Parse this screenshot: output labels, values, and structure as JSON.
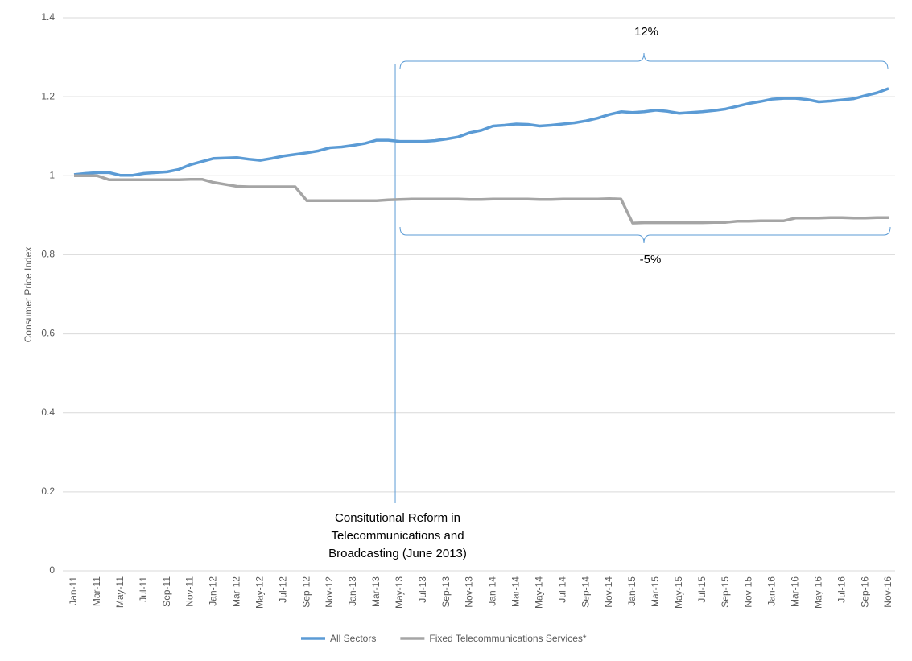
{
  "chart_data": {
    "type": "line",
    "y_label": "Consumer Price Index",
    "categories": [
      "Jan-11",
      null,
      "Mar-11",
      null,
      "May-11",
      null,
      "Jul-11",
      null,
      "Sep-11",
      null,
      "Nov-11",
      null,
      "Jan-12",
      null,
      "Mar-12",
      null,
      "May-12",
      null,
      "Jul-12",
      null,
      "Sep-12",
      null,
      "Nov-12",
      null,
      "Jan-13",
      null,
      "Mar-13",
      null,
      "May-13",
      null,
      "Jul-13",
      null,
      "Sep-13",
      null,
      "Nov-13",
      null,
      "Jan-14",
      null,
      "Mar-14",
      null,
      "May-14",
      null,
      "Jul-14",
      null,
      "Sep-14",
      null,
      "Nov-14",
      null,
      "Jan-15",
      null,
      "Mar-15",
      null,
      "May-15",
      null,
      "Jul-15",
      null,
      "Sep-15",
      null,
      "Nov-15",
      null,
      "Jan-16",
      null,
      "Mar-16",
      null,
      "May-16",
      null,
      "Jul-16",
      null,
      "Sep-16",
      null,
      "Nov-16"
    ],
    "series": [
      {
        "name": "All Sectors",
        "color": "#5b9bd5",
        "values": [
          1.003,
          1.006,
          1.008,
          1.008,
          1.001,
          1.001,
          1.006,
          1.008,
          1.01,
          1.016,
          1.028,
          1.036,
          1.044,
          1.045,
          1.046,
          1.042,
          1.039,
          1.044,
          1.05,
          1.054,
          1.058,
          1.063,
          1.071,
          1.073,
          1.077,
          1.082,
          1.09,
          1.09,
          1.087,
          1.087,
          1.087,
          1.089,
          1.093,
          1.098,
          1.109,
          1.115,
          1.126,
          1.128,
          1.131,
          1.13,
          1.126,
          1.128,
          1.131,
          1.134,
          1.139,
          1.146,
          1.155,
          1.162,
          1.16,
          1.162,
          1.166,
          1.163,
          1.158,
          1.16,
          1.162,
          1.165,
          1.169,
          1.176,
          1.183,
          1.188,
          1.194,
          1.196,
          1.196,
          1.193,
          1.187,
          1.189,
          1.192,
          1.195,
          1.203,
          1.21,
          1.221
        ]
      },
      {
        "name": "Fixed Telecommunications Services*",
        "color": "#a5a5a5",
        "values": [
          1.0,
          1.0,
          1.0,
          0.99,
          0.99,
          0.99,
          0.99,
          0.99,
          0.99,
          0.99,
          0.991,
          0.991,
          0.983,
          0.978,
          0.973,
          0.972,
          0.972,
          0.972,
          0.972,
          0.972,
          0.937,
          0.937,
          0.937,
          0.937,
          0.937,
          0.937,
          0.937,
          0.939,
          0.94,
          0.941,
          0.941,
          0.941,
          0.941,
          0.941,
          0.94,
          0.94,
          0.941,
          0.941,
          0.941,
          0.941,
          0.94,
          0.94,
          0.941,
          0.941,
          0.941,
          0.941,
          0.942,
          0.941,
          0.88,
          0.881,
          0.881,
          0.881,
          0.881,
          0.881,
          0.881,
          0.882,
          0.882,
          0.885,
          0.885,
          0.886,
          0.886,
          0.886,
          0.893,
          0.893,
          0.893,
          0.894,
          0.894,
          0.893,
          0.893,
          0.894,
          0.894
        ]
      }
    ],
    "ylim": [
      0,
      1.4
    ],
    "yticks": [
      0,
      0.2,
      0.4,
      0.6,
      0.8,
      1,
      1.2,
      1.4
    ],
    "grid": true,
    "legend": "bottom",
    "annotations": {
      "all_sectors_change": "12%",
      "fixed_change": "-5%",
      "reform": [
        "Consitutional Reform in",
        "Telecommunications and",
        "Broadcasting (June 2013)"
      ]
    }
  }
}
